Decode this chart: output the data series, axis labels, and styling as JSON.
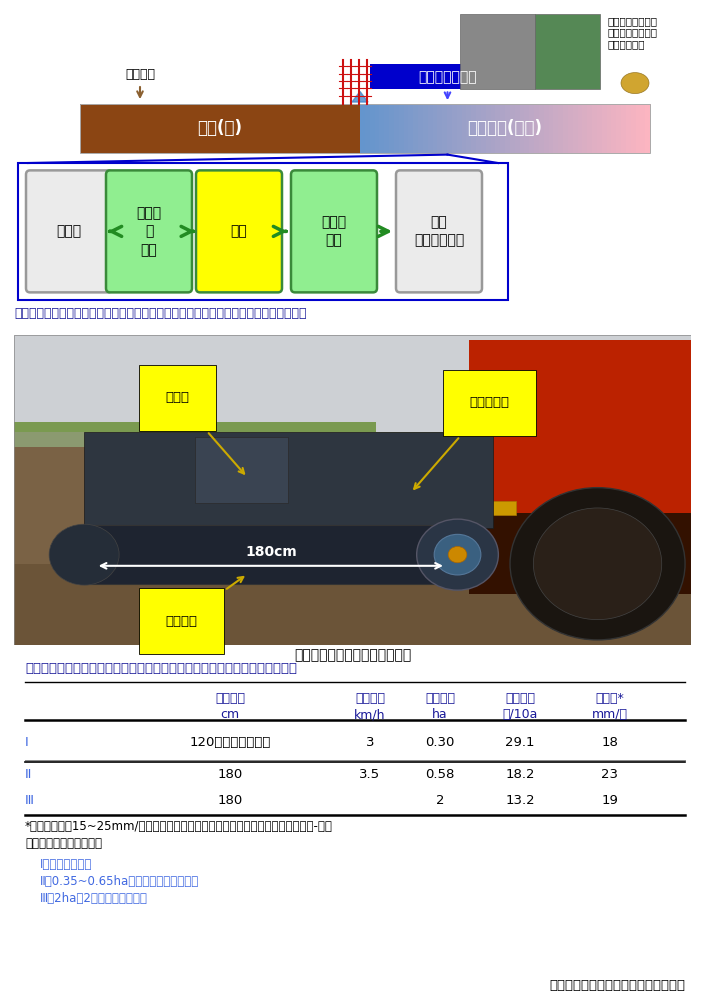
{
  "fig1_caption": "図１　二毛作地域における乾田直播の作業工程（漏水防止工程に振動ローラを用いる）",
  "fig2_caption": "図２　新規開発した振動ローラ",
  "table1_title": "表１　生産者圃場における実証試験（福岡県みやま市内、灰色低地土ほ場）",
  "table_headers": [
    "ローラ幅",
    "設定速度",
    "ほ場面積",
    "作業時間",
    "減水深*"
  ],
  "table_units": [
    "cm",
    "km/h",
    "ha",
    "分/10a",
    "mm/日"
  ],
  "table_rows": [
    [
      "Ⅰ",
      "120（従来市販機）",
      "3",
      "0.30",
      "29.1",
      "18"
    ],
    [
      "Ⅱ",
      "180",
      "3.5",
      "0.58",
      "18.2",
      "23"
    ],
    [
      "Ⅲ",
      "180",
      "",
      "2",
      "13.2",
      "19"
    ]
  ],
  "footnote1": "*適正減水深：15~25mm/日（農林水産省、土地改良事業計画基準及び運用・解説-計画",
  "footnote2": "「圃場整備（水田）」）",
  "footnote3": "Ⅰ　対象ほ場１筆",
  "footnote4": "Ⅱ　0.35~0.65haの４筆で試験した平均",
  "footnote5": "Ⅲ　2haの2筆で試験した平均",
  "author": "（中野恵子、高橋仁康、深見公一郎）",
  "bar_label_left": "畑作(麦)",
  "bar_label_right": "乾田直播(水稲)",
  "bar_color_left": "#8B4513",
  "label_haisui": "排水対策",
  "label_hashu": "播種＋漏水対策",
  "label_sukumi": "スクミリンゴガイ\n乾田直播水稲への\n被害は少ない",
  "process_boxes": [
    "麦収穫",
    "耕うん\n・\n播種",
    "鎮圧",
    "除草剤\n散布",
    "入水\n播種後１か月"
  ],
  "process_colors": [
    "#EBEBEB",
    "#90EE90",
    "#FFFF00",
    "#90EE90",
    "#EBEBEB"
  ],
  "process_border_colors": [
    "#999999",
    "#3a8a3a",
    "#3a8a3a",
    "#3a8a3a",
    "#999999"
  ]
}
